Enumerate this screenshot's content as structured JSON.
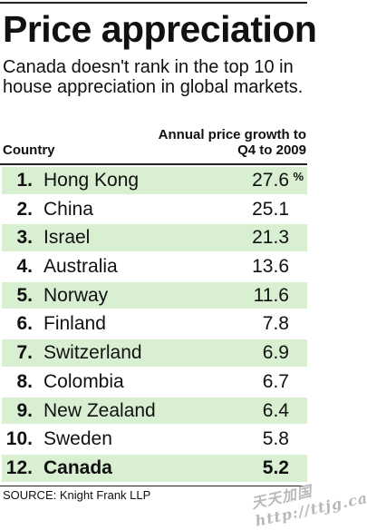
{
  "title": "Price appreciation",
  "subtitle": "Canada doesn't rank in the top 10 in house appreciation in global markets.",
  "column_headers": {
    "country": "Country",
    "growth": "Annual price growth to Q4 to 2009"
  },
  "chart_data": {
    "type": "table",
    "title": "Price appreciation",
    "columns": [
      "Country",
      "Annual price growth to Q4 to 2009"
    ],
    "unit": "%",
    "rows": [
      {
        "rank": "1.",
        "country": "Hong Kong",
        "value": "27.6"
      },
      {
        "rank": "2.",
        "country": "China",
        "value": "25.1"
      },
      {
        "rank": "3.",
        "country": "Israel",
        "value": "21.3"
      },
      {
        "rank": "4.",
        "country": "Australia",
        "value": "13.6"
      },
      {
        "rank": "5.",
        "country": "Norway",
        "value": "11.6"
      },
      {
        "rank": "6.",
        "country": "Finland",
        "value": "7.8"
      },
      {
        "rank": "7.",
        "country": "Switzerland",
        "value": "6.9"
      },
      {
        "rank": "8.",
        "country": "Colombia",
        "value": "6.7"
      },
      {
        "rank": "9.",
        "country": "New Zealand",
        "value": "6.4"
      },
      {
        "rank": "10.",
        "country": "Sweden",
        "value": "5.8"
      },
      {
        "rank": "12.",
        "country": "Canada",
        "value": "5.2"
      }
    ],
    "highlight_country": "Canada"
  },
  "colors": {
    "row_shade": "#d8efd2",
    "text": "#111111"
  },
  "source": "SOURCE: Knight Frank LLP",
  "watermark": "天天加国 http://ttjg.ca"
}
